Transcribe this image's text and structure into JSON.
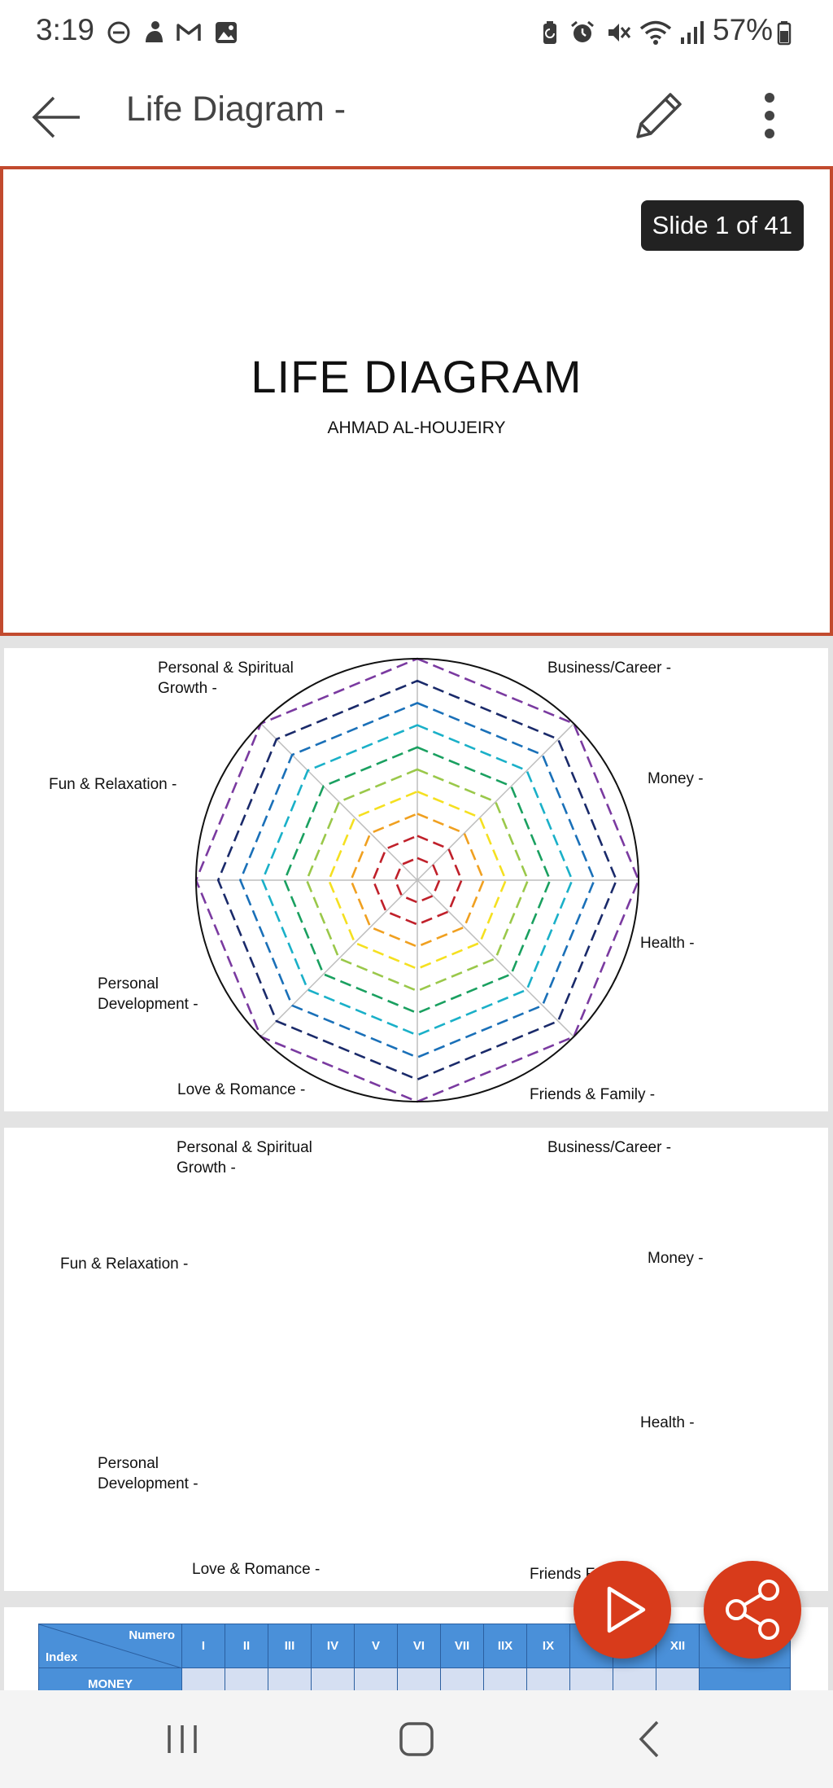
{
  "status_bar": {
    "time": "3:19",
    "battery": "57%",
    "left_icons": [
      "dnd-icon",
      "notification-icon",
      "gmail-icon",
      "gallery-icon"
    ],
    "right_icons": [
      "battery-saver-icon",
      "alarm-icon",
      "mute-icon",
      "wifi-icon",
      "signal-icon",
      "battery-icon"
    ]
  },
  "app_bar": {
    "title": "Life Diagram -"
  },
  "slide1": {
    "badge": "Slide 1 of 41",
    "title": "LIFE DIAGRAM",
    "subtitle": "AHMAD AL-HOUJEIRY"
  },
  "slide2": {
    "labels": {
      "personal_spiritual_1": "Personal & Spiritual",
      "personal_spiritual_2": "Growth -",
      "business": "Business/Career -",
      "fun": "Fun & Relaxation -",
      "money": "Money -",
      "health": "Health -",
      "personal_dev_1": "Personal",
      "personal_dev_2": "Development -",
      "love": "Love & Romance -",
      "friends": "Friends & Family -"
    },
    "ring_colors": [
      "#c0202a",
      "#c0202a",
      "#f0a020",
      "#f5e020",
      "#9ac84a",
      "#1aa060",
      "#1ab0c8",
      "#1a70b8",
      "#1a2a6a",
      "#7a3aa0"
    ]
  },
  "slide3": {
    "labels": {
      "personal_spiritual_1": "Personal & Spiritual",
      "personal_spiritual_2": "Growth -",
      "business": "Business/Career -",
      "fun": "Fun & Relaxation -",
      "money": "Money -",
      "health": "Health -",
      "personal_dev_1": "Personal",
      "personal_dev_2": "Development -",
      "love": "Love & Romance -",
      "friends": "Friends F"
    }
  },
  "slide4": {
    "header_numero": "Numero",
    "header_index": "Index",
    "columns": [
      "I",
      "II",
      "III",
      "IV",
      "V",
      "VI",
      "VII",
      "IIX",
      "IX",
      "",
      "",
      "XII",
      ""
    ],
    "row_label": "MONEY"
  }
}
